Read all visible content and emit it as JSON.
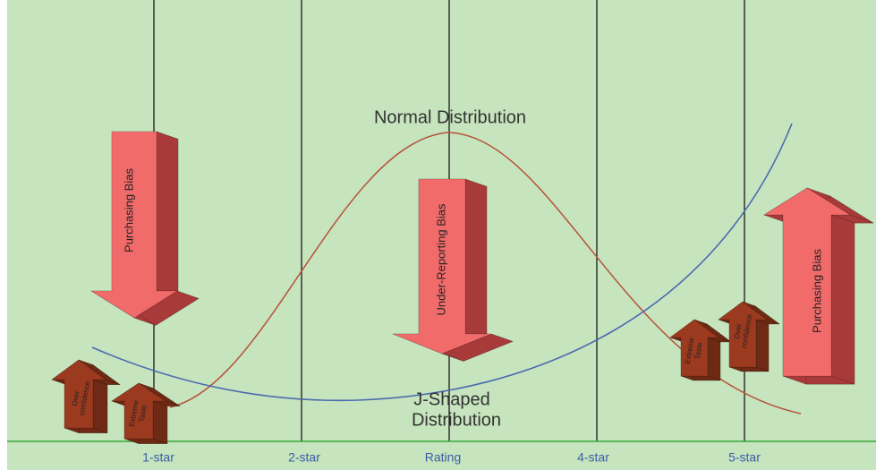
{
  "curves": {
    "normal": {
      "label": "Normal Distribution"
    },
    "j_shaped": {
      "lines": [
        "J-Shaped",
        "Distribution"
      ]
    }
  },
  "arrows": {
    "left_purchasing": "Purchasing Bias",
    "under_reporting": "Under-Reporting Bias",
    "right_purchasing": "Purchasing Bias",
    "left_over": [
      "Over",
      "confidence"
    ],
    "left_extreme": [
      "Extreme",
      "Taste"
    ],
    "right_extreme": [
      "Extreme",
      "Taste"
    ],
    "right_over": [
      "Over",
      "confidence"
    ]
  },
  "x_axis": {
    "labels": [
      "1-star",
      "2-star",
      "Rating",
      "4-star",
      "5-star"
    ]
  }
}
